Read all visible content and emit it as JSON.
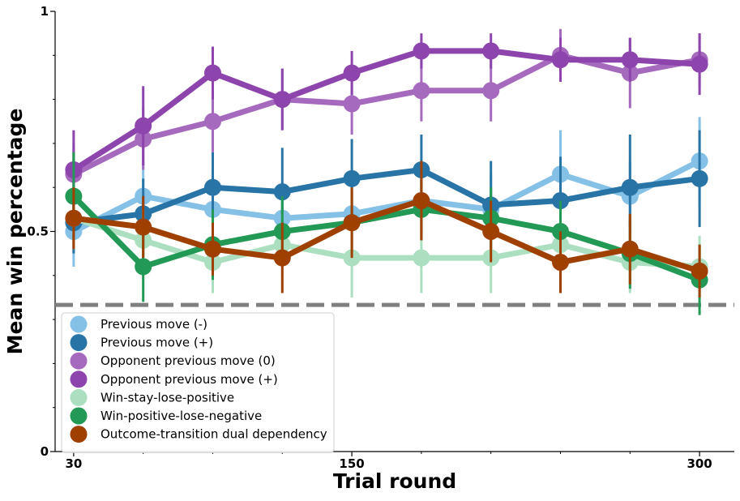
{
  "chart_data": {
    "type": "line",
    "xlabel": "Trial round",
    "ylabel": "Mean win percentage",
    "x": [
      30,
      60,
      90,
      120,
      150,
      180,
      210,
      240,
      270,
      300
    ],
    "xlim": [
      22,
      315
    ],
    "ylim": [
      0,
      1
    ],
    "xticks": [
      30,
      150,
      300
    ],
    "xtick_labels": [
      "30",
      "150",
      "300"
    ],
    "yticks": [
      0,
      0.5,
      1
    ],
    "ytick_labels": [
      "0",
      "0.5",
      "1"
    ],
    "minor_yticks": [
      0.1,
      0.2,
      0.3,
      0.4,
      0.6,
      0.7,
      0.8,
      0.9
    ],
    "minor_xticks": [
      60,
      90,
      120,
      180,
      210,
      240,
      270
    ],
    "reference_line": {
      "y": 0.333,
      "style": "dashed",
      "color": "#808080"
    },
    "grid": false,
    "legend_position": "lower-left",
    "series": [
      {
        "name": "Previous move (-)",
        "color": "#85c0e6",
        "values": [
          0.5,
          0.58,
          0.55,
          0.53,
          0.54,
          0.57,
          0.55,
          0.63,
          0.58,
          0.66
        ],
        "err": [
          0.08,
          0.08,
          0.08,
          0.08,
          0.08,
          0.08,
          0.08,
          0.1,
          0.08,
          0.1
        ]
      },
      {
        "name": "Previous move (+)",
        "color": "#2874a6",
        "values": [
          0.52,
          0.54,
          0.6,
          0.59,
          0.62,
          0.64,
          0.56,
          0.57,
          0.6,
          0.62
        ],
        "err": [
          0.07,
          0.08,
          0.08,
          0.1,
          0.09,
          0.08,
          0.1,
          0.1,
          0.12,
          0.11
        ]
      },
      {
        "name": "Opponent previous move (0)",
        "color": "#a569bd",
        "values": [
          0.63,
          0.71,
          0.75,
          0.8,
          0.79,
          0.82,
          0.82,
          0.9,
          0.86,
          0.89
        ],
        "err": [
          0.07,
          0.07,
          0.07,
          0.07,
          0.07,
          0.07,
          0.07,
          0.06,
          0.08,
          0.06
        ]
      },
      {
        "name": "Opponent previous move (+)",
        "color": "#8e44ad",
        "values": [
          0.64,
          0.74,
          0.86,
          0.8,
          0.86,
          0.91,
          0.91,
          0.89,
          0.89,
          0.88
        ],
        "err": [
          0.09,
          0.09,
          0.06,
          0.07,
          0.05,
          0.04,
          0.04,
          0.05,
          0.05,
          0.07
        ]
      },
      {
        "name": "Win-stay-lose-positive",
        "color": "#abdfbf",
        "values": [
          0.53,
          0.48,
          0.43,
          0.47,
          0.44,
          0.44,
          0.44,
          0.47,
          0.43,
          0.42
        ],
        "err": [
          0.07,
          0.07,
          0.07,
          0.07,
          0.09,
          0.08,
          0.08,
          0.06,
          0.07,
          0.07
        ]
      },
      {
        "name": "Win-positive-lose-negative",
        "color": "#229954",
        "values": [
          0.58,
          0.42,
          0.47,
          0.5,
          0.52,
          0.55,
          0.53,
          0.5,
          0.45,
          0.39
        ],
        "err": [
          0.1,
          0.08,
          0.08,
          0.08,
          0.07,
          0.07,
          0.07,
          0.07,
          0.08,
          0.08
        ]
      },
      {
        "name": "Outcome-transition dual dependency",
        "color": "#a04000",
        "values": [
          0.53,
          0.51,
          0.46,
          0.44,
          0.52,
          0.57,
          0.5,
          0.43,
          0.46,
          0.41
        ],
        "err": [
          0.07,
          0.07,
          0.06,
          0.08,
          0.08,
          0.09,
          0.07,
          0.07,
          0.08,
          0.06
        ]
      }
    ]
  }
}
